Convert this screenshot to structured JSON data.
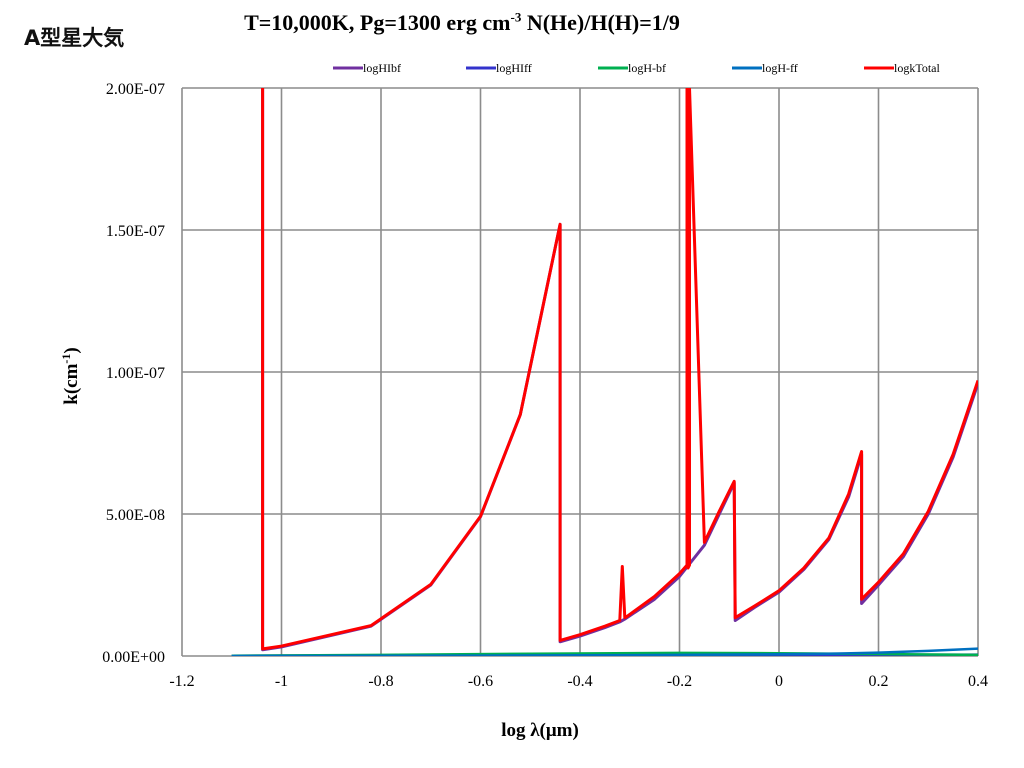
{
  "corner_label": "A型星大気",
  "title_parts": {
    "main": "T=10,000K, Pg=1300 erg cm",
    "exp": "-3",
    "rest": " N(He)/H(H)=1/9"
  },
  "chart_data": {
    "type": "line",
    "title": "T=10,000K, Pg=1300 erg cm-3 N(He)/H(H)=1/9",
    "xlabel": "log λ(μm)",
    "ylabel": "k(cm-1)",
    "ylabel_parts": {
      "main": "k(cm",
      "exp": "-1",
      "close": ")"
    },
    "xlim": [
      -1.2,
      0.4
    ],
    "ylim": [
      0,
      2e-07
    ],
    "x_ticks": [
      -1.2,
      -1,
      -0.8,
      -0.6,
      -0.4,
      -0.2,
      0,
      0.2,
      0.4
    ],
    "x_tick_labels": [
      "-1.2",
      "-1",
      "-0.8",
      "-0.6",
      "-0.4",
      "-0.2",
      "0",
      "0.2",
      "0.4"
    ],
    "y_ticks": [
      0,
      5e-08,
      1e-07,
      1.5e-07,
      2e-07
    ],
    "y_tick_labels": [
      "0.00E+00",
      "5.00E-08",
      "1.00E-07",
      "1.50E-07",
      "2.00E-07"
    ],
    "grid": true,
    "legend_position": "top",
    "series": [
      {
        "name": "logHIbf",
        "color": "#7030a0",
        "x": [
          -1.038,
          -1.038,
          -1.0,
          -0.82,
          -0.7,
          -0.6,
          -0.52,
          -0.44,
          -0.44,
          -0.4,
          -0.35,
          -0.32,
          -0.31,
          -0.25,
          -0.2,
          -0.15,
          -0.12,
          -0.09,
          -0.088,
          -0.05,
          0,
          0.05,
          0.1,
          0.14,
          0.166,
          0.166,
          0.2,
          0.25,
          0.3,
          0.35,
          0.4
        ],
        "y": [
          2e-07,
          2.2e-09,
          3.2e-09,
          1.05e-08,
          2.5e-08,
          4.9e-08,
          8.5e-08,
          1.52e-07,
          5e-09,
          7e-09,
          1e-08,
          1.2e-08,
          1.3e-08,
          2e-08,
          2.8e-08,
          3.9e-08,
          5e-08,
          6.1e-08,
          1.25e-08,
          1.7e-08,
          2.25e-08,
          3.05e-08,
          4.1e-08,
          5.6e-08,
          7.1e-08,
          1.85e-08,
          2.5e-08,
          3.5e-08,
          5e-08,
          7e-08,
          9.6e-08
        ]
      },
      {
        "name": "logHIff",
        "color": "#3333cc",
        "x": [
          -1.1,
          -0.8,
          -0.4,
          0,
          0.4
        ],
        "y": [
          1e-10,
          2e-10,
          3e-10,
          4e-10,
          5e-10
        ]
      },
      {
        "name": "logH-bf",
        "color": "#00b050",
        "x": [
          -1.1,
          -0.8,
          -0.5,
          -0.2,
          0,
          0.2,
          0.4
        ],
        "y": [
          1e-10,
          4e-10,
          8e-10,
          1.1e-09,
          1e-09,
          7e-10,
          4e-10
        ]
      },
      {
        "name": "logH-ff",
        "color": "#0070c0",
        "x": [
          -1.1,
          -0.8,
          -0.6,
          -0.4,
          -0.2,
          0,
          0.1,
          0.2,
          0.3,
          0.4
        ],
        "y": [
          0,
          1e-10,
          1.5e-10,
          2.5e-10,
          4e-10,
          6e-10,
          8e-10,
          1.2e-09,
          1.8e-09,
          2.6e-09
        ]
      },
      {
        "name": "logkTotal",
        "color": "#ff0000",
        "x": [
          -1.038,
          -1.038,
          -1.0,
          -0.82,
          -0.7,
          -0.6,
          -0.52,
          -0.44,
          -0.44,
          -0.4,
          -0.35,
          -0.32,
          -0.315,
          -0.31,
          -0.305,
          -0.25,
          -0.2,
          -0.185,
          -0.185,
          -0.183,
          -0.183,
          -0.18,
          -0.18,
          -0.15,
          -0.12,
          -0.09,
          -0.088,
          -0.05,
          0,
          0.05,
          0.1,
          0.14,
          0.166,
          0.166,
          0.2,
          0.25,
          0.3,
          0.35,
          0.4
        ],
        "y": [
          2e-07,
          2.5e-09,
          3.5e-09,
          1.07e-08,
          2.52e-08,
          4.92e-08,
          8.5e-08,
          1.52e-07,
          5.5e-09,
          7.5e-09,
          1.05e-08,
          1.25e-08,
          3.15e-08,
          1.35e-08,
          1.4e-08,
          2.1e-08,
          2.9e-08,
          3.2e-08,
          2e-07,
          2e-07,
          3.1e-08,
          3.2e-08,
          2e-07,
          4e-08,
          5.1e-08,
          6.15e-08,
          1.35e-08,
          1.75e-08,
          2.3e-08,
          3.1e-08,
          4.15e-08,
          5.7e-08,
          7.2e-08,
          2e-08,
          2.6e-08,
          3.6e-08,
          5.1e-08,
          7.1e-08,
          9.7e-08
        ]
      }
    ]
  }
}
